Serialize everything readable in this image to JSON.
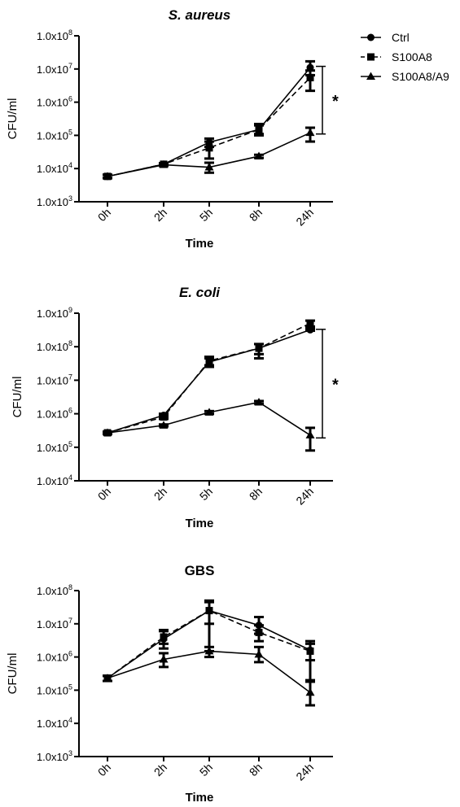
{
  "legend": {
    "placement": "top-right",
    "entries": [
      {
        "series": "Ctrl",
        "label": "Ctrl",
        "marker": "circle",
        "line": "solid"
      },
      {
        "series": "S100A8",
        "label": "S100A8",
        "marker": "square",
        "line": "dashed"
      },
      {
        "series": "S100A8/A9",
        "label": "S100A8/A9",
        "marker": "triangle",
        "line": "solid"
      }
    ]
  },
  "chart_data": [
    {
      "type": "line",
      "title": "S. aureus",
      "title_italic": true,
      "xlabel": "Time",
      "ylabel": "CFU/ml",
      "y_scale": "log",
      "ylim": [
        1000,
        100000000
      ],
      "y_ticks": [
        {
          "value": 1000,
          "mantissa": "1.0x10",
          "exp": "3"
        },
        {
          "value": 10000,
          "mantissa": "1.0x10",
          "exp": "4"
        },
        {
          "value": 100000,
          "mantissa": "1.0x10",
          "exp": "5"
        },
        {
          "value": 1000000,
          "mantissa": "1.0x10",
          "exp": "6"
        },
        {
          "value": 10000000,
          "mantissa": "1.0x10",
          "exp": "7"
        },
        {
          "value": 100000000,
          "mantissa": "1.0x10",
          "exp": "8"
        }
      ],
      "categories": [
        "0h",
        "2h",
        "5h",
        "8h",
        "24h"
      ],
      "series": [
        {
          "name": "Ctrl",
          "values": [
            5800,
            13500,
            62000,
            150000,
            11000000
          ],
          "err_low": [
            5200,
            12500,
            45000,
            110000,
            6500000
          ],
          "err_high": [
            6500,
            14500,
            80000,
            200000,
            17000000
          ]
        },
        {
          "name": "S100A8",
          "values": [
            5800,
            13500,
            42000,
            150000,
            5500000
          ],
          "err_low": [
            5200,
            12500,
            20000,
            100000,
            2200000
          ],
          "err_high": [
            6500,
            14500,
            65000,
            220000,
            9000000
          ]
        },
        {
          "name": "S100A8/A9",
          "values": [
            5800,
            13000,
            11000,
            23500,
            120000
          ],
          "err_low": [
            5200,
            12000,
            7500,
            21000,
            65000
          ],
          "err_high": [
            6500,
            14000,
            15000,
            26000,
            170000
          ]
        }
      ],
      "significance": {
        "label": "*",
        "from": 12000000,
        "to": 110000,
        "category": "24h"
      }
    },
    {
      "type": "line",
      "title": "E. coli",
      "title_italic": true,
      "xlabel": "Time",
      "ylabel": "CFU/ml",
      "y_scale": "log",
      "ylim": [
        10000,
        1000000000
      ],
      "y_ticks": [
        {
          "value": 10000,
          "mantissa": "1.0x10",
          "exp": "4"
        },
        {
          "value": 100000,
          "mantissa": "1.0x10",
          "exp": "5"
        },
        {
          "value": 1000000,
          "mantissa": "1.0x10",
          "exp": "6"
        },
        {
          "value": 10000000,
          "mantissa": "1.0x10",
          "exp": "7"
        },
        {
          "value": 100000000,
          "mantissa": "1.0x10",
          "exp": "8"
        },
        {
          "value": 1000000000,
          "mantissa": "1.0x10",
          "exp": "9"
        }
      ],
      "categories": [
        "0h",
        "2h",
        "5h",
        "8h",
        "24h"
      ],
      "series": [
        {
          "name": "Ctrl",
          "values": [
            270000,
            900000,
            35000000,
            90000000,
            320000000
          ],
          "err_low": [
            250000,
            800000,
            25000000,
            45000000,
            300000000
          ],
          "err_high": [
            290000,
            1000000,
            45000000,
            120000000,
            350000000
          ]
        },
        {
          "name": "S100A8",
          "values": [
            270000,
            800000,
            38000000,
            90000000,
            500000000
          ],
          "err_low": [
            250000,
            700000,
            28000000,
            60000000,
            400000000
          ],
          "err_high": [
            290000,
            900000,
            50000000,
            120000000,
            600000000
          ]
        },
        {
          "name": "S100A8/A9",
          "values": [
            270000,
            450000,
            1100000,
            2200000,
            230000
          ],
          "err_low": [
            250000,
            420000,
            1000000,
            2000000,
            80000
          ],
          "err_high": [
            290000,
            480000,
            1200000,
            2400000,
            380000
          ]
        }
      ],
      "significance": {
        "label": "*",
        "from": 330000000,
        "to": 190000,
        "category": "24h"
      }
    },
    {
      "type": "line",
      "title": "GBS",
      "title_italic": false,
      "xlabel": "Time",
      "ylabel": "CFU/ml",
      "y_scale": "log",
      "ylim": [
        1000,
        100000000
      ],
      "y_ticks": [
        {
          "value": 1000,
          "mantissa": "1.0x10",
          "exp": "3"
        },
        {
          "value": 10000,
          "mantissa": "1.0x10",
          "exp": "4"
        },
        {
          "value": 100000,
          "mantissa": "1.0x10",
          "exp": "5"
        },
        {
          "value": 1000000,
          "mantissa": "1.0x10",
          "exp": "6"
        },
        {
          "value": 10000000,
          "mantissa": "1.0x10",
          "exp": "7"
        },
        {
          "value": 100000000,
          "mantissa": "1.0x10",
          "exp": "8"
        }
      ],
      "categories": [
        "0h",
        "2h",
        "5h",
        "8h",
        "24h"
      ],
      "series": [
        {
          "name": "Ctrl",
          "values": [
            230000,
            3500000,
            25000000,
            9000000,
            1600000
          ],
          "err_low": [
            190000,
            1800000,
            1500000,
            5000000,
            200000
          ],
          "err_high": [
            270000,
            6000000,
            45000000,
            16000000,
            3000000
          ]
        },
        {
          "name": "S100A8",
          "values": [
            230000,
            4000000,
            25000000,
            5500000,
            1500000
          ],
          "err_low": [
            190000,
            2500000,
            10000000,
            3000000,
            800000
          ],
          "err_high": [
            270000,
            6500000,
            50000000,
            9000000,
            2500000
          ]
        },
        {
          "name": "S100A8/A9",
          "values": [
            230000,
            850000,
            1500000,
            1200000,
            85000
          ],
          "err_low": [
            190000,
            500000,
            1000000,
            700000,
            35000
          ],
          "err_high": [
            270000,
            1300000,
            2000000,
            2000000,
            180000
          ]
        }
      ]
    }
  ]
}
